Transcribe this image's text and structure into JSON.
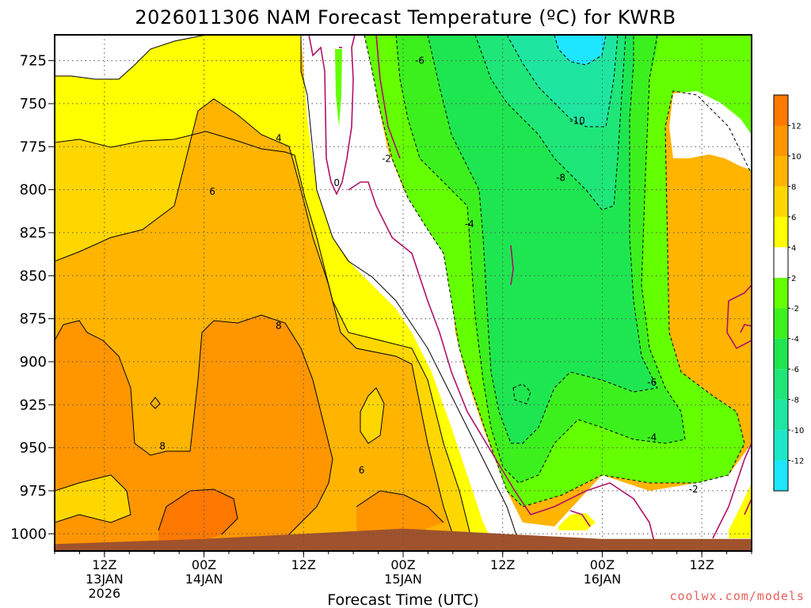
{
  "title": "2026011306 NAM Forecast Temperature (ºC) for KWRB",
  "credit": "coolwx.com/models",
  "chart_data": {
    "type": "heatmap",
    "title": "2026011306 NAM Forecast Temperature (ºC) for KWRB",
    "xlabel": "Forecast Time (UTC)",
    "ylabel": "",
    "y_axis": {
      "ticks": [
        725,
        750,
        775,
        800,
        825,
        850,
        875,
        900,
        925,
        950,
        975,
        1000
      ],
      "tick_labels": [
        "725",
        "750",
        "775",
        "800",
        "825",
        "850",
        "875",
        "900",
        "925",
        "950",
        "975",
        "1000"
      ],
      "range": [
        1010,
        710
      ]
    },
    "x_axis": {
      "ticks": [
        {
          "label": "12Z",
          "sub": "13JAN",
          "year": "2026"
        },
        {
          "label": "00Z",
          "sub": "14JAN",
          "year": ""
        },
        {
          "label": "12Z",
          "sub": "",
          "year": ""
        },
        {
          "label": "00Z",
          "sub": "15JAN",
          "year": ""
        },
        {
          "label": "12Z",
          "sub": "",
          "year": ""
        },
        {
          "label": "00Z",
          "sub": "16JAN",
          "year": ""
        },
        {
          "label": "12Z",
          "sub": "",
          "year": ""
        }
      ],
      "range": [
        "2026-01-13T06:00Z",
        "2026-01-16T18:00Z"
      ]
    },
    "grid": true,
    "colorbar": {
      "position": "right",
      "levels": [
        -14,
        -12,
        -10,
        -8,
        -6,
        -4,
        -2,
        2,
        4,
        6,
        8,
        10,
        12,
        14
      ],
      "labels": [
        "-12",
        "-10",
        "-8",
        "-6",
        "-4",
        "-2",
        "2",
        "4",
        "6",
        "8",
        "10",
        "12"
      ],
      "colors": [
        "#1ee6ff",
        "#1ee6c8",
        "#1ee6a0",
        "#1ee678",
        "#1ee650",
        "#3cf01e",
        "#64ff00",
        "#ffffff",
        "#ffff00",
        "#ffd700",
        "#ffb400",
        "#ff9600",
        "#ff7800"
      ]
    },
    "contour_labels": [
      {
        "text": "-6",
        "t": "2026-01-15T02:00Z",
        "p": 725
      },
      {
        "text": "-10",
        "t": "2026-01-15T21:00Z",
        "p": 760
      },
      {
        "text": "-8",
        "t": "2026-01-15T19:00Z",
        "p": 793
      },
      {
        "text": "-2",
        "t": "2026-01-14T22:00Z",
        "p": 782
      },
      {
        "text": "0",
        "t": "2026-01-14T16:00Z",
        "p": 796
      },
      {
        "text": "-4",
        "t": "2026-01-15T08:00Z",
        "p": 820
      },
      {
        "text": "4",
        "t": "2026-01-14T09:00Z",
        "p": 770
      },
      {
        "text": "6",
        "t": "2026-01-14T01:00Z",
        "p": 801
      },
      {
        "text": "8",
        "t": "2026-01-14T09:00Z",
        "p": 879
      },
      {
        "text": "8",
        "t": "2026-01-13T19:00Z",
        "p": 949
      },
      {
        "text": "6",
        "t": "2026-01-14T19:00Z",
        "p": 963
      },
      {
        "text": "-6",
        "t": "2026-01-16T06:00Z",
        "p": 912
      },
      {
        "text": "-4",
        "t": "2026-01-16T06:00Z",
        "p": 944
      },
      {
        "text": "-2",
        "t": "2026-01-16T11:00Z",
        "p": 974
      }
    ],
    "surface_pressure": {
      "t": [
        "2026-01-13T06:00Z",
        "2026-01-14T00:00Z",
        "2026-01-14T12:00Z",
        "2026-01-15T00:00Z",
        "2026-01-15T12:00Z",
        "2026-01-16T00:00Z",
        "2026-01-16T18:00Z"
      ],
      "p": [
        1006,
        1003,
        1000,
        997,
        1000,
        1003,
        1003
      ]
    }
  }
}
